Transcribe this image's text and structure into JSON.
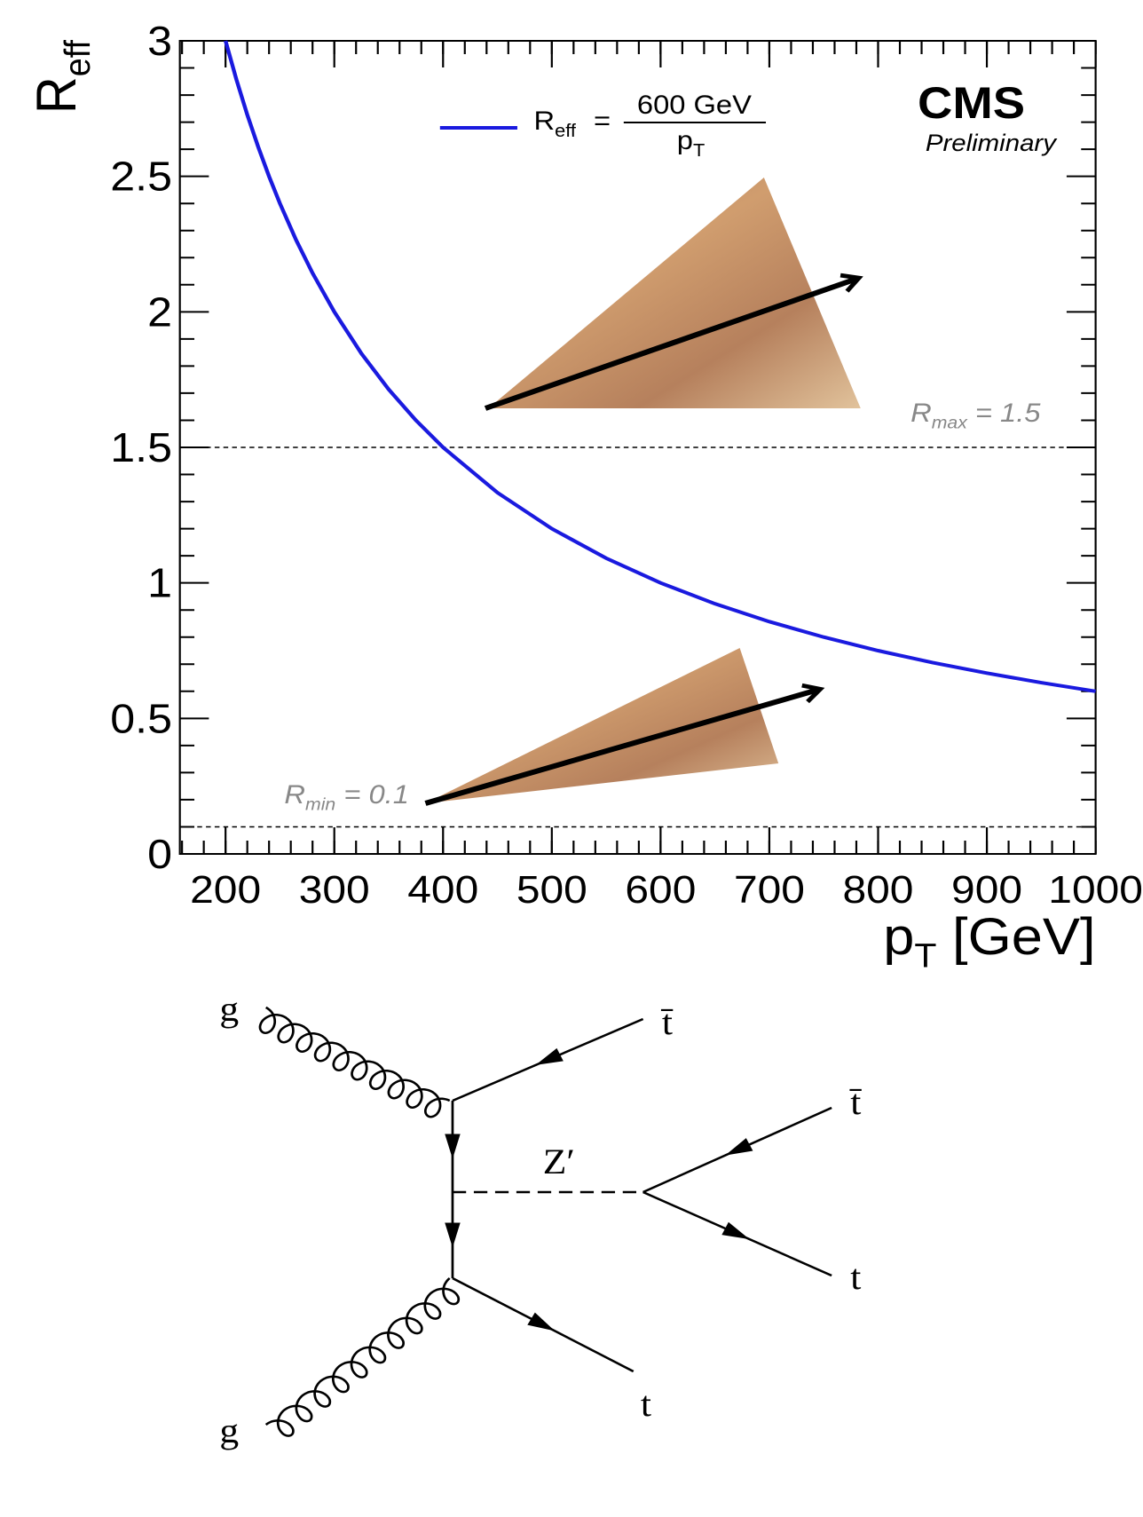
{
  "chart_data": {
    "type": "line",
    "ylabel": {
      "main": "R",
      "sub": "eff"
    },
    "xlabel": {
      "main": "p",
      "sub": "T",
      "rest": " [GeV]"
    },
    "x": [
      200,
      210,
      220,
      230,
      240,
      250,
      265,
      280,
      300,
      325,
      350,
      375,
      400,
      450,
      500,
      550,
      600,
      650,
      700,
      750,
      800,
      850,
      900,
      950,
      1000
    ],
    "series": [
      {
        "color": "#1a1adf",
        "legend": {
          "lhs": "R",
          "lhs_sub": "eff",
          "eq": "=",
          "numerator": "600 GeV",
          "denominator": "p",
          "denominator_sub": "T"
        },
        "values": [
          3,
          2.857,
          2.727,
          2.609,
          2.5,
          2.4,
          2.264,
          2.143,
          2,
          1.846,
          1.714,
          1.6,
          1.5,
          1.333,
          1.2,
          1.091,
          1,
          0.923,
          0.857,
          0.8,
          0.75,
          0.706,
          0.667,
          0.632,
          0.6
        ]
      }
    ],
    "xlim": [
      158,
      1000
    ],
    "ylim": [
      0,
      3
    ],
    "xticks": [
      200,
      300,
      400,
      500,
      600,
      700,
      800,
      900,
      1000
    ],
    "yticks": [
      0,
      0.5,
      1,
      1.5,
      2,
      2.5,
      3
    ],
    "hlines": [
      1.5,
      0.1
    ],
    "annotations": {
      "experiment": "CMS",
      "status": "Preliminary",
      "rmax": {
        "main": "R",
        "sub": "max",
        "rest": " = 1.5"
      },
      "rmin": {
        "main": "R",
        "sub": "min",
        "rest": " = 0.1"
      }
    }
  },
  "diagram": {
    "labels": {
      "g_top": "g",
      "g_bottom": "g",
      "tbar_1": "t̄",
      "tbar_2": "t̄",
      "zprime": "Z′",
      "t_1": "t",
      "t_2": "t"
    }
  }
}
